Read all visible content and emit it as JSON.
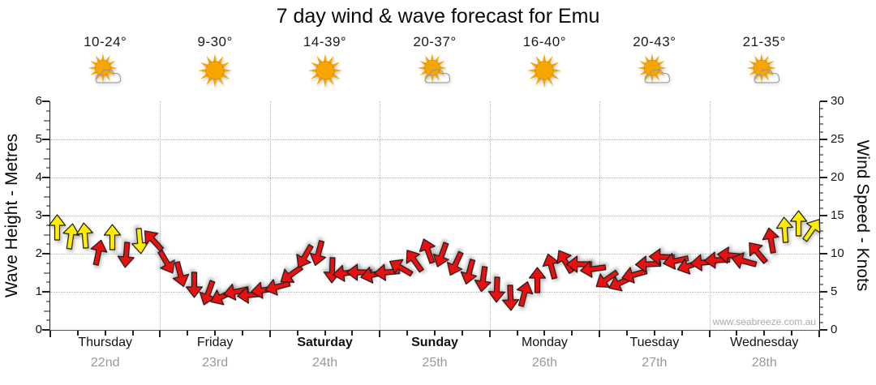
{
  "title": "7 day wind & wave forecast for Emu",
  "watermark": "www.seabreeze.com.au",
  "colors": {
    "arrow_yellow": "#ffed00",
    "arrow_red": "#e91010",
    "axis_bottom_line": "#2e5f8c",
    "grid": "#b5b5b5",
    "date_gray": "#999999",
    "watermark_gray": "#aaaaaa"
  },
  "chart_data": {
    "type": "wind-arrows",
    "title": "7 day wind & wave forecast for Emu",
    "left_axis": {
      "label": "Wave Height - Metres",
      "min": 0,
      "max": 6,
      "ticks": [
        0,
        1,
        2,
        3,
        4,
        5,
        6
      ]
    },
    "right_axis": {
      "label": "Wind Speed - Knots",
      "min": 0,
      "max": 30,
      "ticks": [
        0,
        5,
        10,
        15,
        20,
        25,
        30
      ]
    },
    "grid": "dotted horizontal at each metre, dotted vertical at day boundaries",
    "days": [
      {
        "name": "Thursday",
        "date": "22nd",
        "temp": "10-24°",
        "icon": "partly-cloudy",
        "weekend": false
      },
      {
        "name": "Friday",
        "date": "23rd",
        "temp": "9-30°",
        "icon": "sunny",
        "weekend": false
      },
      {
        "name": "Saturday",
        "date": "24th",
        "temp": "14-39°",
        "icon": "sunny",
        "weekend": true
      },
      {
        "name": "Sunday",
        "date": "25th",
        "temp": "20-37°",
        "icon": "partly-cloudy",
        "weekend": true
      },
      {
        "name": "Monday",
        "date": "26th",
        "temp": "16-40°",
        "icon": "sunny",
        "weekend": false
      },
      {
        "name": "Tuesday",
        "date": "27th",
        "temp": "20-43°",
        "icon": "partly-cloudy",
        "weekend": false
      },
      {
        "name": "Wednesday",
        "date": "28th",
        "temp": "21-35°",
        "icon": "partly-cloudy",
        "weekend": false
      }
    ],
    "arrows_note": "8 arrows per day, evenly spaced; kts = wind speed on right axis (wave metres = kts/5); dir deg: 0=up/N, 90=right/E",
    "arrows": [
      {
        "kts": 13.5,
        "dir": 0,
        "color": "yellow"
      },
      {
        "kts": 12.3,
        "dir": 8,
        "color": "yellow"
      },
      {
        "kts": 12.4,
        "dir": -5,
        "color": "yellow"
      },
      {
        "kts": 10.2,
        "dir": 12,
        "color": "red"
      },
      {
        "kts": 12.2,
        "dir": 0,
        "color": "yellow"
      },
      {
        "kts": 9.8,
        "dir": 185,
        "color": "red"
      },
      {
        "kts": 11.6,
        "dir": 175,
        "color": "yellow"
      },
      {
        "kts": 11.8,
        "dir": 318,
        "color": "red"
      },
      {
        "kts": 8.8,
        "dir": 150,
        "color": "red"
      },
      {
        "kts": 7.2,
        "dir": 165,
        "color": "red"
      },
      {
        "kts": 5.8,
        "dir": 180,
        "color": "red"
      },
      {
        "kts": 4.8,
        "dir": 200,
        "color": "red"
      },
      {
        "kts": 4.4,
        "dir": 245,
        "color": "red"
      },
      {
        "kts": 5.0,
        "dir": 258,
        "color": "red"
      },
      {
        "kts": 4.6,
        "dir": 265,
        "color": "red"
      },
      {
        "kts": 5.2,
        "dir": 262,
        "color": "red"
      },
      {
        "kts": 5.6,
        "dir": 255,
        "color": "red"
      },
      {
        "kts": 7.2,
        "dir": 235,
        "color": "red"
      },
      {
        "kts": 9.6,
        "dir": 210,
        "color": "red"
      },
      {
        "kts": 10.0,
        "dir": 195,
        "color": "red"
      },
      {
        "kts": 7.8,
        "dir": 182,
        "color": "red"
      },
      {
        "kts": 7.4,
        "dir": 262,
        "color": "red"
      },
      {
        "kts": 7.6,
        "dir": 270,
        "color": "red"
      },
      {
        "kts": 7.2,
        "dir": 258,
        "color": "red"
      },
      {
        "kts": 7.6,
        "dir": 265,
        "color": "red"
      },
      {
        "kts": 8.2,
        "dir": 300,
        "color": "red"
      },
      {
        "kts": 9.2,
        "dir": 325,
        "color": "red"
      },
      {
        "kts": 10.4,
        "dir": 340,
        "color": "red"
      },
      {
        "kts": 9.8,
        "dir": 200,
        "color": "red"
      },
      {
        "kts": 8.6,
        "dir": 205,
        "color": "red"
      },
      {
        "kts": 7.6,
        "dir": 195,
        "color": "red"
      },
      {
        "kts": 6.6,
        "dir": 188,
        "color": "red"
      },
      {
        "kts": 5.2,
        "dir": 182,
        "color": "red"
      },
      {
        "kts": 4.2,
        "dir": 178,
        "color": "red"
      },
      {
        "kts": 4.8,
        "dir": 15,
        "color": "red"
      },
      {
        "kts": 6.6,
        "dir": 0,
        "color": "red"
      },
      {
        "kts": 8.4,
        "dir": 345,
        "color": "red"
      },
      {
        "kts": 9.0,
        "dir": 330,
        "color": "red"
      },
      {
        "kts": 8.6,
        "dir": 270,
        "color": "red"
      },
      {
        "kts": 8.0,
        "dir": 262,
        "color": "red"
      },
      {
        "kts": 6.6,
        "dir": 235,
        "color": "red"
      },
      {
        "kts": 6.2,
        "dir": 245,
        "color": "red"
      },
      {
        "kts": 7.2,
        "dir": 255,
        "color": "red"
      },
      {
        "kts": 8.6,
        "dir": 268,
        "color": "red"
      },
      {
        "kts": 9.6,
        "dir": 272,
        "color": "red"
      },
      {
        "kts": 9.0,
        "dir": 258,
        "color": "red"
      },
      {
        "kts": 8.4,
        "dir": 252,
        "color": "red"
      },
      {
        "kts": 8.8,
        "dir": 265,
        "color": "red"
      },
      {
        "kts": 9.2,
        "dir": 268,
        "color": "red"
      },
      {
        "kts": 9.8,
        "dir": 275,
        "color": "red"
      },
      {
        "kts": 9.0,
        "dir": 285,
        "color": "red"
      },
      {
        "kts": 10.2,
        "dir": 320,
        "color": "red"
      },
      {
        "kts": 11.8,
        "dir": 350,
        "color": "red"
      },
      {
        "kts": 13.2,
        "dir": 356,
        "color": "yellow"
      },
      {
        "kts": 14.0,
        "dir": 0,
        "color": "yellow"
      },
      {
        "kts": 13.2,
        "dir": 35,
        "color": "yellow"
      }
    ]
  }
}
